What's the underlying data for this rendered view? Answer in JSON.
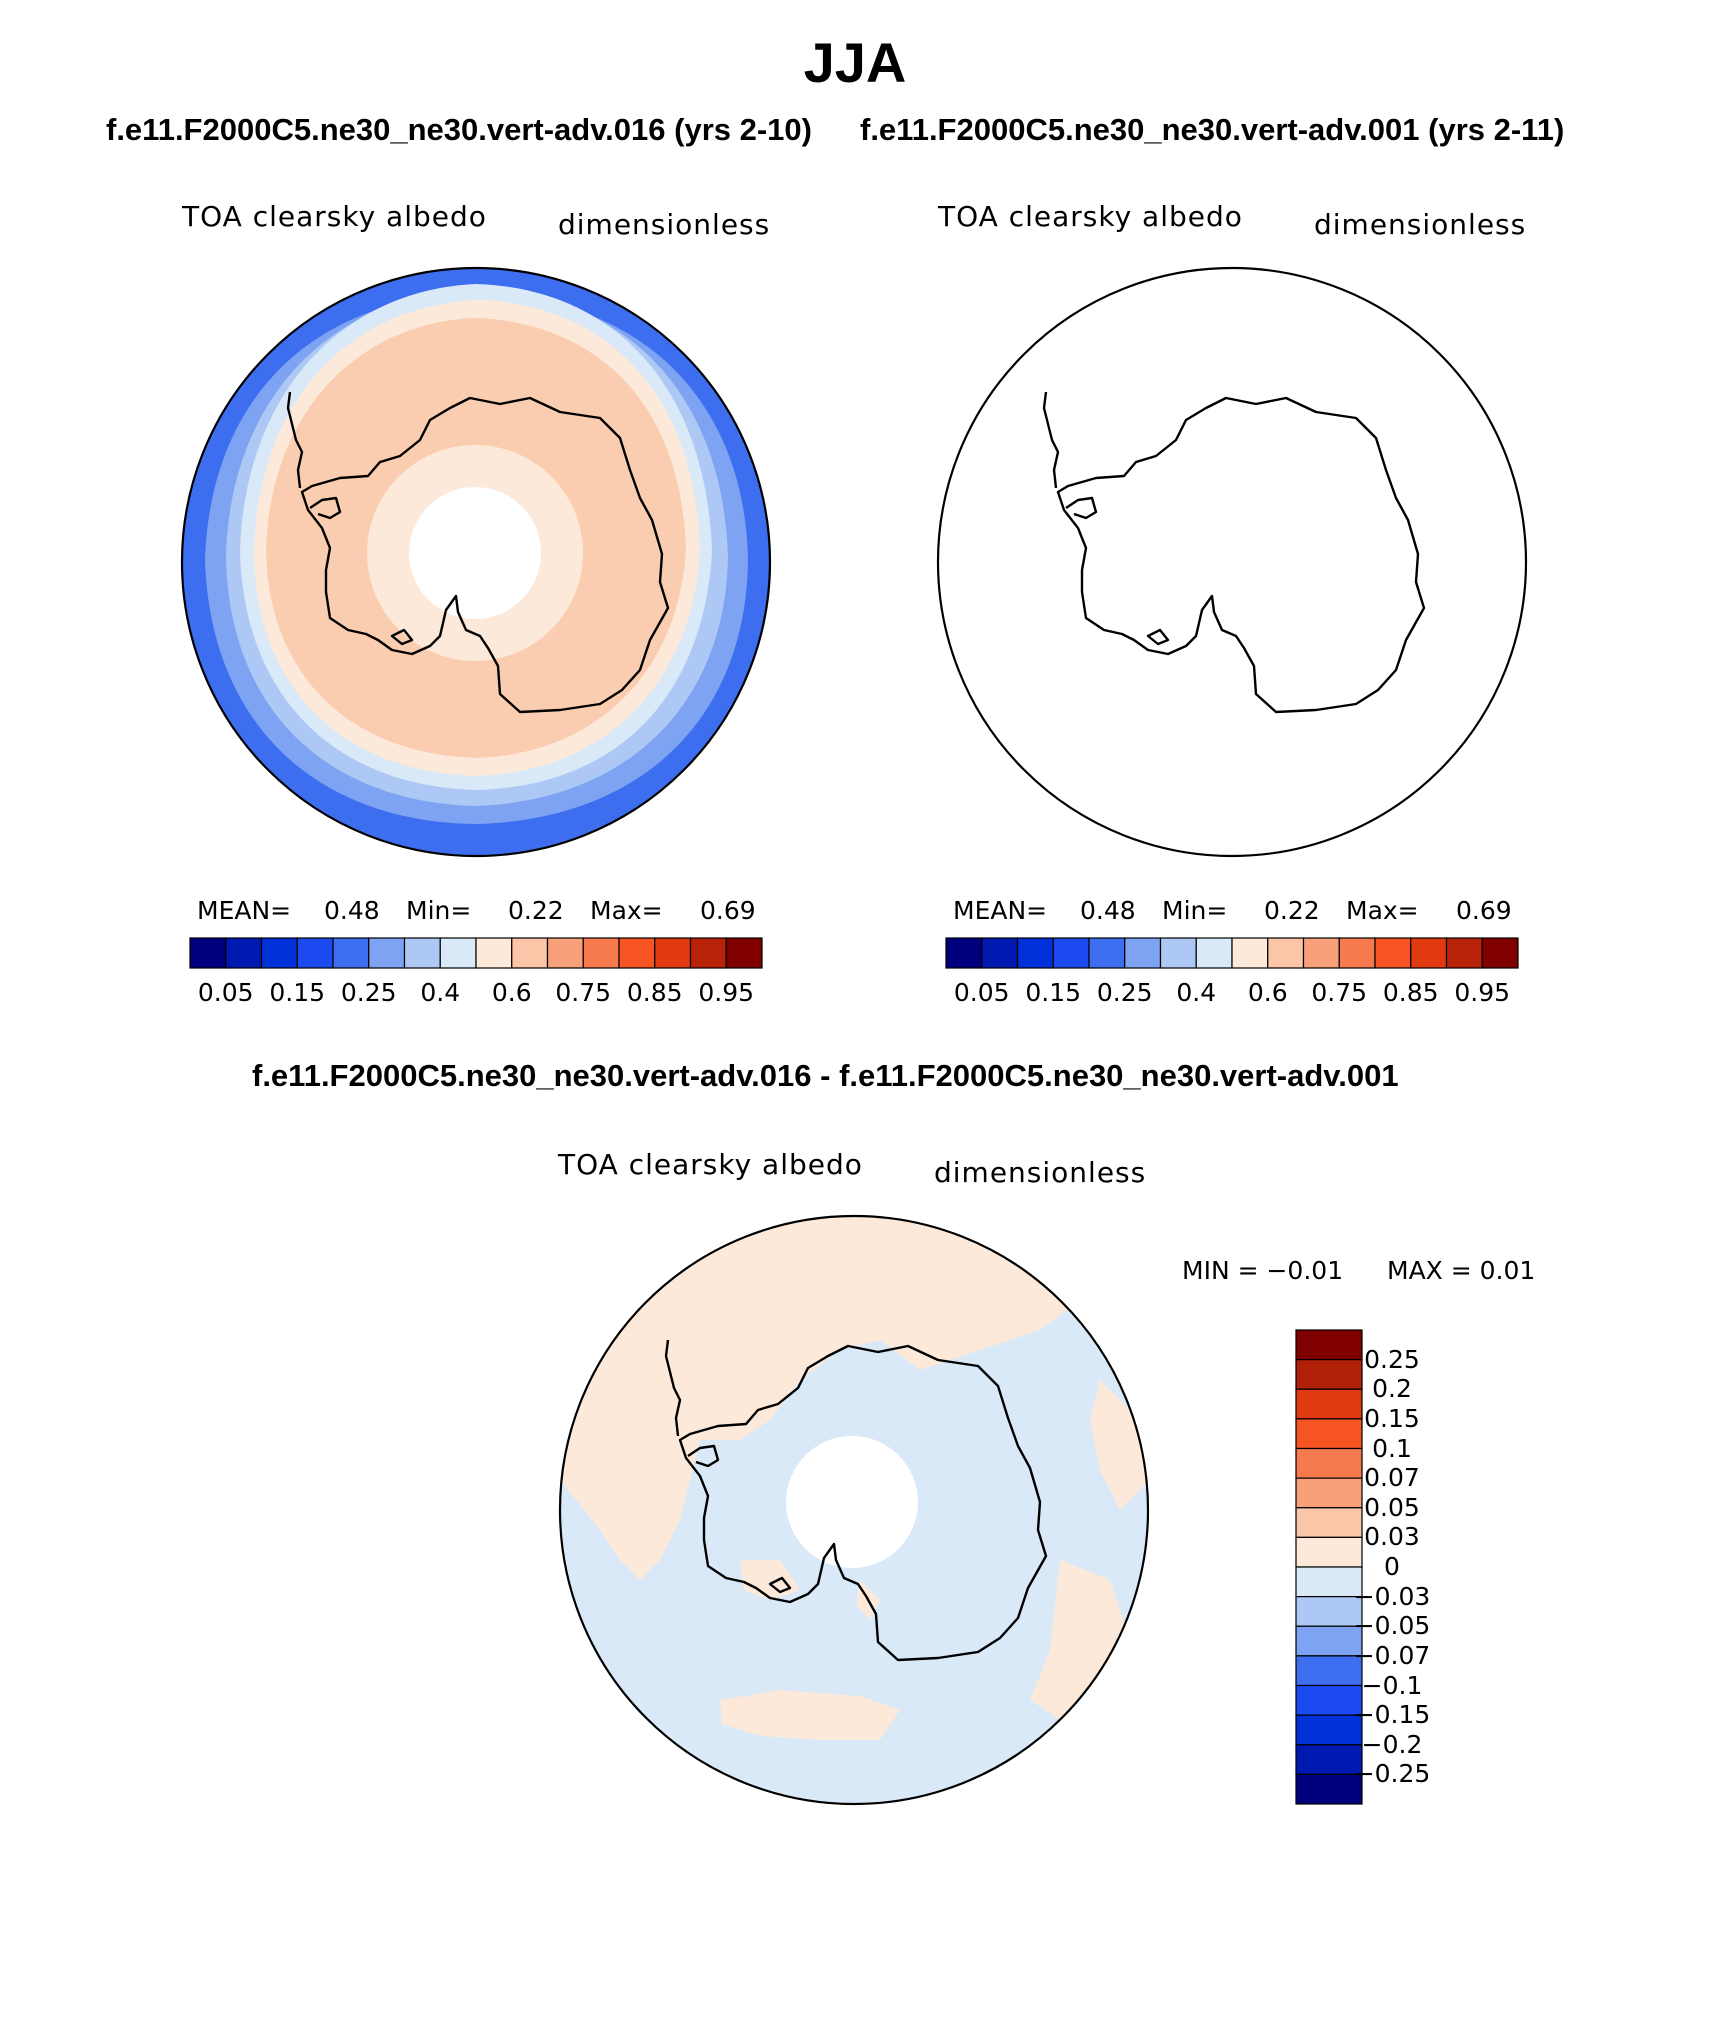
{
  "title": "JJA",
  "top_titles": {
    "left": "f.e11.F2000C5.ne30_ne30.vert-adv.016 (yrs 2-10)",
    "right": "f.e11.F2000C5.ne30_ne30.vert-adv.001 (yrs 2-11)"
  },
  "diff_title": "f.e11.F2000C5.ne30_ne30.vert-adv.016 - f.e11.F2000C5.ne30_ne30.vert-adv.001",
  "panels": {
    "left": {
      "var_label": "TOA clearsky albedo",
      "units": "dimensionless",
      "mean_label": "MEAN=",
      "mean_value": "0.48",
      "min_label": "Min=",
      "min_value": "0.22",
      "max_label": "Max=",
      "max_value": "0.69"
    },
    "right": {
      "var_label": "TOA clearsky albedo",
      "units": "dimensionless",
      "mean_label": "MEAN=",
      "mean_value": "0.48",
      "min_label": "Min=",
      "min_value": "0.22",
      "max_label": "Max=",
      "max_value": "0.69"
    },
    "diff": {
      "var_label": "TOA clearsky albedo",
      "units": "dimensionless",
      "min_text": "MIN =   −0.01",
      "max_text": "MAX =    0.01"
    }
  },
  "colorbar_top": {
    "colors": [
      "#00007f",
      "#0019b0",
      "#0030d8",
      "#1a4af0",
      "#3e6ef0",
      "#7ea3f2",
      "#adc8f4",
      "#d9e9f8",
      "#fce9da",
      "#fbc5a8",
      "#f7a07a",
      "#f77a4f",
      "#f75424",
      "#e23a10",
      "#b82208",
      "#800000"
    ],
    "ticks": [
      "0.05",
      "0.15",
      "0.25",
      "0.4",
      "0.6",
      "0.75",
      "0.85",
      "0.95"
    ]
  },
  "colorbar_diff": {
    "colors_top_to_bottom": [
      "#800000",
      "#b02008",
      "#e03a10",
      "#f75424",
      "#f77a4f",
      "#f7a07a",
      "#fbc5a8",
      "#fce9da",
      "#d9e9f8",
      "#adc8f4",
      "#7ea3f2",
      "#3e6ef0",
      "#1a4af0",
      "#0030d8",
      "#0019b0",
      "#00007f"
    ],
    "ticks_top_to_bottom": [
      "0.25",
      "0.2",
      "0.15",
      "0.1",
      "0.07",
      "0.05",
      "0.03",
      "0",
      "−0.03",
      "−0.05",
      "−0.07",
      "−0.1",
      "−0.15",
      "−0.2",
      "−0.25"
    ]
  },
  "map_colors": {
    "deep_blue": "#3e6ef0",
    "mid_blue": "#7ea3f2",
    "light_blue": "#adc8f4",
    "pale_blue": "#d9e9f8",
    "cream": "#fce9da",
    "salmon": "#fbcdb0",
    "diff_blue": "#d9e9f8",
    "diff_cream": "#fce9da"
  }
}
